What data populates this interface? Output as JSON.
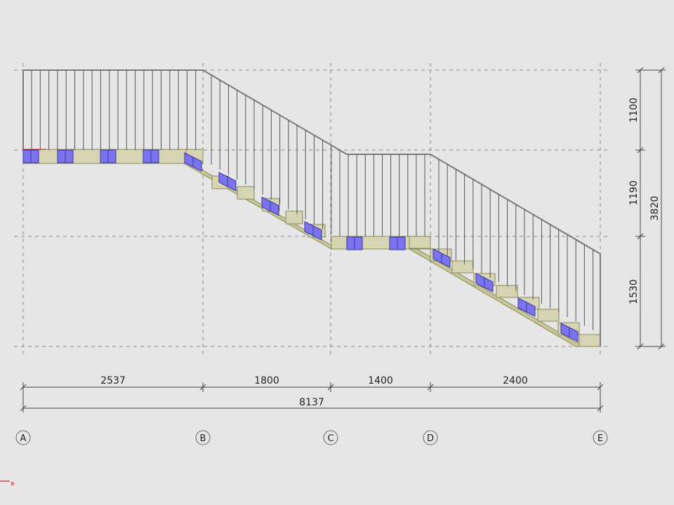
{
  "drawing": {
    "background": "#e6e6e6",
    "colors": {
      "grid": "#888888",
      "rail": "#7a7a7a",
      "baluster": "#555555",
      "step_fill": "#d6d4b2",
      "step_stroke": "#8a8a5a",
      "stringer": "#c8c596",
      "bracket_fill": "#7b74ee",
      "bracket_stroke": "#3a36a0",
      "dimension": "#444444",
      "axis_x": "#cc0000",
      "axis_z": "#2222aa"
    },
    "horizontal_dimensions": {
      "segments": [
        "2537",
        "1800",
        "1400",
        "2400"
      ],
      "total": "8137"
    },
    "vertical_dimensions": {
      "segments": [
        "1100",
        "1190",
        "1530"
      ],
      "total": "3820"
    },
    "grid_axes": [
      "A",
      "B",
      "C",
      "D",
      "E"
    ],
    "ucs_label": "x"
  }
}
